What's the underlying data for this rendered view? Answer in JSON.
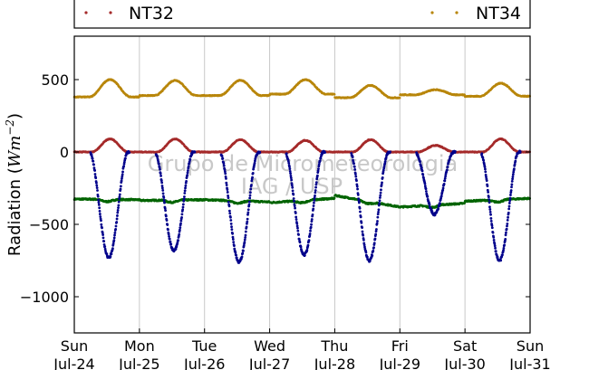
{
  "chart_data": {
    "type": "scatter",
    "title": "",
    "xlabel": "",
    "ylabel": "Radiation (Wm⁻²)",
    "ylabel_text": "Radiation (",
    "ylabel_unit": "Wm",
    "ylabel_exp": "−2",
    "ylabel_close": ")",
    "xlim": [
      0,
      7
    ],
    "ylim": [
      -1250,
      800
    ],
    "yticks": [
      500,
      0,
      -500,
      -1000
    ],
    "ytick_labels": [
      "500",
      "0",
      "−500",
      "−1000"
    ],
    "xticks": [
      {
        "day": "Sun",
        "date": "Jul-24"
      },
      {
        "day": "Mon",
        "date": "Jul-25"
      },
      {
        "day": "Tue",
        "date": "Jul-26"
      },
      {
        "day": "Wed",
        "date": "Jul-27"
      },
      {
        "day": "Thu",
        "date": "Jul-28"
      },
      {
        "day": "Fri",
        "date": "Jul-29"
      },
      {
        "day": "Sat",
        "date": "Jul-30"
      },
      {
        "day": "Sun",
        "date": "Jul-31"
      }
    ],
    "grid": "vertical",
    "legend_position": "top",
    "watermark": [
      "Grupo de Micrometeorologia",
      "IAG / USP"
    ],
    "series": [
      {
        "name": "NT32",
        "color": "#a52a2a",
        "in_legend": true,
        "description": "daily cycle around 0 with afternoon maxima",
        "peaks": [
          90,
          90,
          85,
          80,
          85,
          45,
          90
        ],
        "baseline": 0
      },
      {
        "name": "NT34",
        "color": "#b8860b",
        "in_legend": true,
        "baseline": [
          380,
          390,
          390,
          400,
          375,
          395,
          385
        ],
        "peaks": [
          500,
          495,
          495,
          500,
          460,
          430,
          475
        ]
      },
      {
        "name": "",
        "color": "#00008b",
        "in_legend": false,
        "minima": [
          -730,
          -680,
          -760,
          -710,
          -750,
          -430,
          -750
        ]
      },
      {
        "name": "",
        "color": "#006400",
        "in_legend": false,
        "values_start_end": [
          [
            -325,
            -330
          ],
          [
            -335,
            -330
          ],
          [
            -330,
            -345
          ],
          [
            -350,
            -320
          ],
          [
            -300,
            -380
          ],
          [
            -380,
            -355
          ],
          [
            -340,
            -320
          ]
        ]
      }
    ]
  }
}
